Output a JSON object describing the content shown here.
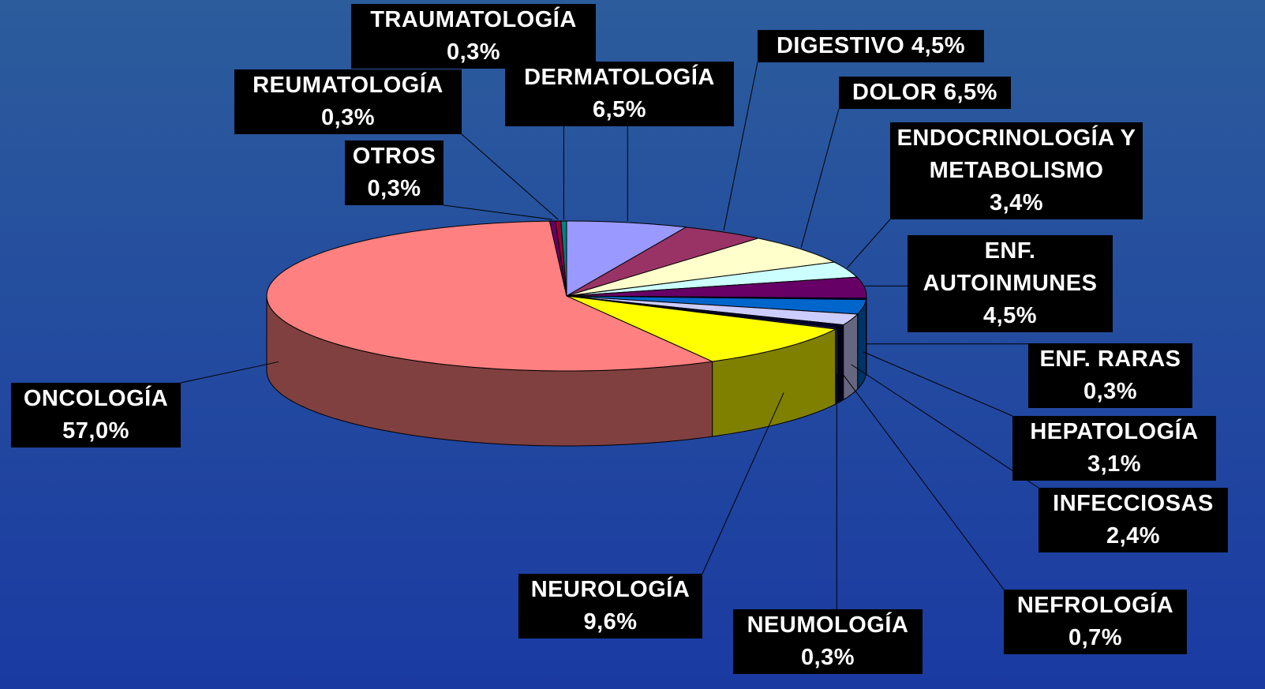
{
  "chart_data": {
    "type": "pie",
    "categories": [
      "DERMATOLOGÍA",
      "DIGESTIVO",
      "DOLOR",
      "ENDOCRINOLOGÍA Y METABOLISMO",
      "ENF. AUTOINMUNES",
      "ENF. RARAS",
      "HEPATOLOGÍA",
      "INFECCIOSAS",
      "NEFROLOGÍA",
      "NEUMOLOGÍA",
      "NEUROLOGÍA",
      "ONCOLOGÍA",
      "OTROS",
      "REUMATOLOGÍA",
      "TRAUMATOLOGÍA"
    ],
    "values": [
      6.5,
      4.5,
      6.5,
      3.4,
      4.5,
      0.3,
      3.1,
      2.4,
      0.7,
      0.3,
      9.6,
      57.0,
      0.3,
      0.3,
      0.3
    ],
    "value_labels": [
      "6,5%",
      "4,5%",
      "6,5%",
      "3,4%",
      "4,5%",
      "0,3%",
      "3,1%",
      "2,4%",
      "0,7%",
      "0,3%",
      "9,6%",
      "57,0%",
      "0,3%",
      "0,3%",
      "0,3%"
    ],
    "colors": [
      "#9999ff",
      "#993366",
      "#ffffcc",
      "#ccffff",
      "#660066",
      "#000080",
      "#0066cc",
      "#ccccff",
      "#000033",
      "#333366",
      "#ffff00",
      "#ff8080",
      "#660066",
      "#990033",
      "#008080"
    ]
  }
}
